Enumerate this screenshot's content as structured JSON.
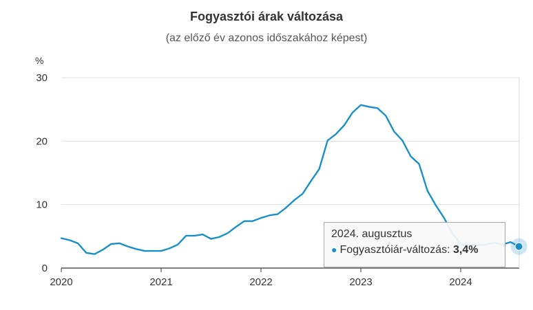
{
  "title": "Fogyasztói árak változása",
  "subtitle": "(az előző év azonos időszakához képest)",
  "chart_data": {
    "type": "line",
    "title": "Fogyasztói árak változása",
    "subtitle": "(az előző év azonos időszakához képest)",
    "y_unit": "%",
    "xlabel": "",
    "ylabel": "",
    "ylim": [
      0,
      30
    ],
    "y_ticks": [
      "0",
      "10",
      "20",
      "30"
    ],
    "x_ticks": [
      "2020",
      "2021",
      "2022",
      "2023",
      "2024"
    ],
    "grid": "horizontal",
    "colors": {
      "line": "#1a8fc7",
      "grid": "#e0e0e0"
    },
    "series": [
      {
        "name": "Fogyasztóiár-változás",
        "x": [
          "2020-01",
          "2020-02",
          "2020-03",
          "2020-04",
          "2020-05",
          "2020-06",
          "2020-07",
          "2020-08",
          "2020-09",
          "2020-10",
          "2020-11",
          "2020-12",
          "2021-01",
          "2021-02",
          "2021-03",
          "2021-04",
          "2021-05",
          "2021-06",
          "2021-07",
          "2021-08",
          "2021-09",
          "2021-10",
          "2021-11",
          "2021-12",
          "2022-01",
          "2022-02",
          "2022-03",
          "2022-04",
          "2022-05",
          "2022-06",
          "2022-07",
          "2022-08",
          "2022-09",
          "2022-10",
          "2022-11",
          "2022-12",
          "2023-01",
          "2023-02",
          "2023-03",
          "2023-04",
          "2023-05",
          "2023-06",
          "2023-07",
          "2023-08",
          "2023-09",
          "2023-10",
          "2023-11",
          "2023-12",
          "2024-01",
          "2024-02",
          "2024-03",
          "2024-04",
          "2024-05",
          "2024-06",
          "2024-07",
          "2024-08"
        ],
        "values": [
          4.7,
          4.4,
          3.9,
          2.4,
          2.2,
          2.9,
          3.8,
          3.9,
          3.4,
          3.0,
          2.7,
          2.7,
          2.7,
          3.1,
          3.7,
          5.1,
          5.1,
          5.3,
          4.6,
          4.9,
          5.5,
          6.5,
          7.4,
          7.4,
          7.9,
          8.3,
          8.5,
          9.5,
          10.7,
          11.7,
          13.7,
          15.6,
          20.1,
          21.1,
          22.5,
          24.5,
          25.7,
          25.4,
          25.2,
          24.0,
          21.5,
          20.1,
          17.6,
          16.4,
          12.2,
          9.9,
          7.9,
          5.5,
          3.8,
          3.7,
          3.6,
          3.7,
          4.0,
          3.7,
          4.1,
          3.4
        ]
      }
    ],
    "tooltip": {
      "date": "2024. augusztus",
      "series_label": "Fogyasztóiár-változás:",
      "value": "3,4%"
    }
  }
}
